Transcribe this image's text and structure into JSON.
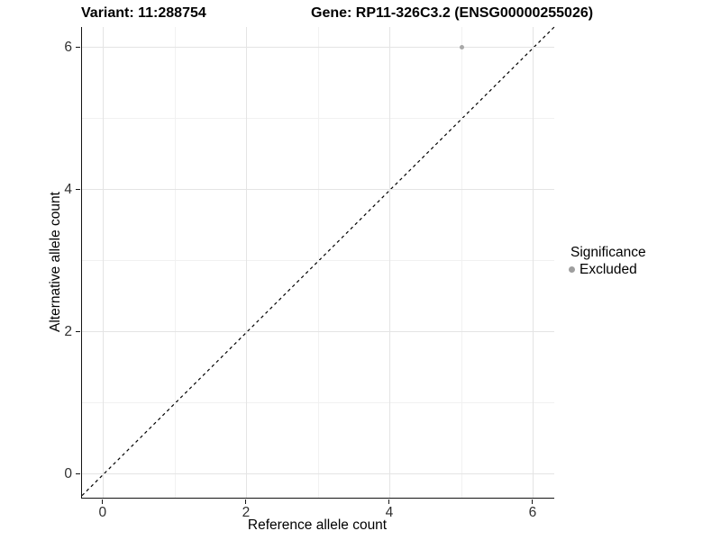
{
  "chart_data": {
    "type": "scatter",
    "title_left": "Variant: 11:288754",
    "title_right": "Gene: RP11-326C3.2 (ENSG00000255026)",
    "xlabel": "Reference allele count",
    "ylabel": "Alternative allele count",
    "xlim": [
      -0.3,
      6.29
    ],
    "ylim": [
      -0.33,
      6.29
    ],
    "xticks": [
      0,
      2,
      4,
      6
    ],
    "yticks": [
      0,
      2,
      4,
      6
    ],
    "minor_xticks": [
      1,
      3,
      5
    ],
    "minor_yticks": [
      1,
      3,
      5
    ],
    "grid": true,
    "series": [
      {
        "name": "Excluded",
        "color": "#a8a8a8",
        "points": [
          {
            "x": 5,
            "y": 6
          }
        ]
      }
    ],
    "reference_line": {
      "type": "abline",
      "intercept": 0,
      "slope": 1,
      "style": "dashed",
      "color": "#000000"
    },
    "legend": {
      "title": "Significance",
      "position": "right",
      "items": [
        {
          "label": "Excluded",
          "color": "#9e9e9e"
        }
      ]
    },
    "colors": {
      "background": "#ffffff",
      "grid_major": "#e4e4e4",
      "grid_minor": "#f1f1f1",
      "axis_line": "#141414",
      "tick_text": "#303030"
    }
  }
}
